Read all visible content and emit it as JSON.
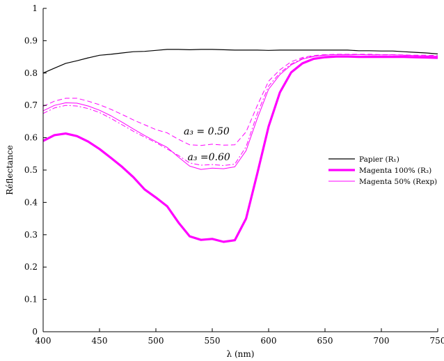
{
  "chart_data": {
    "type": "line",
    "xlabel": "λ (nm)",
    "ylabel": "Réflectance",
    "xlim": [
      400,
      750
    ],
    "ylim": [
      0,
      1
    ],
    "xticks": [
      400,
      450,
      500,
      550,
      600,
      650,
      700,
      750
    ],
    "yticks": [
      0,
      0.1,
      0.2,
      0.3,
      0.4,
      0.5,
      0.6,
      0.7,
      0.8,
      0.9,
      1
    ],
    "grid": false,
    "legend_position": "right",
    "legend": [
      {
        "label": "Papier (R₁)",
        "series": "papier"
      },
      {
        "label": "Magenta 100% (R₃)",
        "series": "magenta100"
      },
      {
        "label": "Magenta 50% (Rexp)",
        "series": "magenta50"
      }
    ],
    "annotations": [
      {
        "text": "a₃ = 0.50",
        "x": 545,
        "y": 0.61
      },
      {
        "text": "a₃ =0.60",
        "x": 547,
        "y": 0.53
      }
    ],
    "x": [
      400,
      410,
      420,
      430,
      440,
      450,
      460,
      470,
      480,
      490,
      500,
      510,
      520,
      530,
      540,
      550,
      560,
      570,
      580,
      590,
      600,
      610,
      620,
      630,
      640,
      650,
      660,
      670,
      680,
      690,
      700,
      710,
      720,
      730,
      740,
      750
    ],
    "series": [
      {
        "id": "papier",
        "color": "#000000",
        "style": "solid",
        "width": 1.2,
        "values": [
          0.8,
          0.815,
          0.83,
          0.838,
          0.847,
          0.855,
          0.858,
          0.862,
          0.866,
          0.867,
          0.87,
          0.873,
          0.873,
          0.872,
          0.873,
          0.873,
          0.872,
          0.871,
          0.871,
          0.871,
          0.87,
          0.871,
          0.871,
          0.871,
          0.871,
          0.871,
          0.871,
          0.871,
          0.869,
          0.869,
          0.868,
          0.868,
          0.866,
          0.864,
          0.862,
          0.859
        ]
      },
      {
        "id": "magenta100",
        "color": "#ff00ff",
        "style": "solid",
        "width": 3.2,
        "values": [
          0.59,
          0.608,
          0.613,
          0.605,
          0.588,
          0.565,
          0.538,
          0.51,
          0.478,
          0.44,
          0.415,
          0.388,
          0.338,
          0.295,
          0.284,
          0.287,
          0.278,
          0.283,
          0.35,
          0.49,
          0.635,
          0.74,
          0.802,
          0.83,
          0.844,
          0.849,
          0.851,
          0.851,
          0.85,
          0.85,
          0.85,
          0.85,
          0.85,
          0.849,
          0.848,
          0.847
        ]
      },
      {
        "id": "magenta50",
        "color": "#ff00ff",
        "style": "solid",
        "width": 1.0,
        "values": [
          0.683,
          0.7,
          0.708,
          0.707,
          0.698,
          0.685,
          0.668,
          0.648,
          0.627,
          0.607,
          0.588,
          0.57,
          0.54,
          0.512,
          0.502,
          0.506,
          0.504,
          0.51,
          0.56,
          0.66,
          0.75,
          0.795,
          0.825,
          0.843,
          0.851,
          0.855,
          0.857,
          0.857,
          0.857,
          0.856,
          0.856,
          0.856,
          0.855,
          0.854,
          0.853,
          0.852
        ]
      },
      {
        "id": "model050",
        "color": "#ff00ff",
        "style": "dash",
        "width": 1.0,
        "values": [
          0.697,
          0.713,
          0.722,
          0.722,
          0.713,
          0.702,
          0.688,
          0.672,
          0.655,
          0.64,
          0.625,
          0.615,
          0.595,
          0.578,
          0.576,
          0.58,
          0.577,
          0.578,
          0.618,
          0.7,
          0.775,
          0.81,
          0.835,
          0.848,
          0.854,
          0.857,
          0.858,
          0.858,
          0.858,
          0.858,
          0.857,
          0.857,
          0.856,
          0.855,
          0.855,
          0.854
        ]
      },
      {
        "id": "model060",
        "color": "#ff00ff",
        "style": "dashdot",
        "width": 1.0,
        "values": [
          0.675,
          0.692,
          0.7,
          0.698,
          0.69,
          0.678,
          0.66,
          0.64,
          0.62,
          0.602,
          0.585,
          0.565,
          0.545,
          0.522,
          0.515,
          0.517,
          0.514,
          0.518,
          0.572,
          0.675,
          0.76,
          0.8,
          0.828,
          0.845,
          0.852,
          0.856,
          0.857,
          0.857,
          0.857,
          0.856,
          0.856,
          0.856,
          0.855,
          0.854,
          0.853,
          0.852
        ]
      }
    ]
  }
}
